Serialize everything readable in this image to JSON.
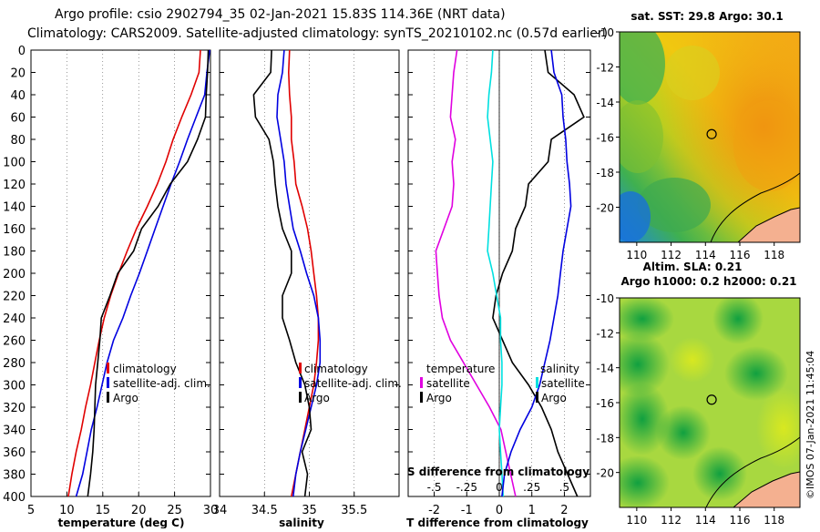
{
  "header": {
    "line1": "Argo profile: csio 2902794_35 02-Jan-2021 15.83S 114.36E (NRT data)",
    "line2": "Climatology: CARS2009. Satellite-adjusted climatology: synTS_20210102.nc (0.57d earlier)"
  },
  "credit": "©IMOS 07-Jan-2021 11:45:04",
  "colors": {
    "climatology": "#e00000",
    "satellite": "#0000e0",
    "argo": "#000000",
    "temperature_diff": "#e000e0",
    "salinity_diff": "#00e0e0"
  },
  "chart_data": [
    {
      "type": "line",
      "id": "temperature",
      "xlabel": "temperature (deg C)",
      "ylabel": "depth",
      "xlim": [
        5,
        30
      ],
      "ylim": [
        0,
        400
      ],
      "xticks": [
        5,
        10,
        15,
        20,
        25,
        30
      ],
      "yticks": [
        0,
        20,
        40,
        60,
        80,
        100,
        120,
        140,
        160,
        180,
        200,
        220,
        240,
        260,
        280,
        300,
        320,
        340,
        360,
        380,
        400
      ],
      "legend": [
        "climatology",
        "satellite-adj. clim.",
        "Argo"
      ],
      "series": [
        {
          "name": "climatology",
          "points": [
            [
              28.6,
              0
            ],
            [
              28.4,
              20
            ],
            [
              27.3,
              40
            ],
            [
              26.0,
              60
            ],
            [
              24.8,
              80
            ],
            [
              23.8,
              100
            ],
            [
              22.6,
              120
            ],
            [
              21.2,
              140
            ],
            [
              19.7,
              160
            ],
            [
              18.4,
              180
            ],
            [
              17.2,
              200
            ],
            [
              16.1,
              220
            ],
            [
              15.2,
              240
            ],
            [
              14.5,
              260
            ],
            [
              13.9,
              280
            ],
            [
              13.3,
              300
            ],
            [
              12.6,
              320
            ],
            [
              12.0,
              340
            ],
            [
              11.3,
              360
            ],
            [
              10.7,
              380
            ],
            [
              10.2,
              400
            ]
          ]
        },
        {
          "name": "satellite-adj. clim.",
          "points": [
            [
              29.9,
              0
            ],
            [
              29.5,
              20
            ],
            [
              29.2,
              40
            ],
            [
              28.0,
              60
            ],
            [
              26.8,
              80
            ],
            [
              25.7,
              100
            ],
            [
              24.5,
              120
            ],
            [
              23.4,
              140
            ],
            [
              22.3,
              160
            ],
            [
              21.2,
              180
            ],
            [
              20.1,
              200
            ],
            [
              18.9,
              220
            ],
            [
              17.8,
              240
            ],
            [
              16.5,
              260
            ],
            [
              15.6,
              280
            ],
            [
              14.9,
              300
            ],
            [
              14.2,
              320
            ],
            [
              13.4,
              340
            ],
            [
              12.8,
              360
            ],
            [
              12.2,
              380
            ],
            [
              11.3,
              400
            ]
          ]
        },
        {
          "name": "Argo",
          "points": [
            [
              29.7,
              0
            ],
            [
              29.6,
              20
            ],
            [
              29.4,
              40
            ],
            [
              29.3,
              60
            ],
            [
              28.2,
              80
            ],
            [
              26.8,
              100
            ],
            [
              24.4,
              120
            ],
            [
              22.7,
              140
            ],
            [
              20.4,
              160
            ],
            [
              19.3,
              180
            ],
            [
              17.1,
              200
            ],
            [
              16.0,
              220
            ],
            [
              14.8,
              240
            ],
            [
              14.6,
              260
            ],
            [
              14.3,
              280
            ],
            [
              14.0,
              300
            ],
            [
              13.9,
              320
            ],
            [
              13.8,
              340
            ],
            [
              13.6,
              360
            ],
            [
              13.3,
              380
            ],
            [
              12.9,
              400
            ]
          ]
        }
      ]
    },
    {
      "type": "line",
      "id": "salinity",
      "xlabel": "salinity",
      "xlim": [
        34,
        36
      ],
      "ylim": [
        0,
        400
      ],
      "xticks": [
        34,
        34.5,
        35,
        35.5
      ],
      "legend": [
        "climatology",
        "satellite-adj. clim.",
        "Argo"
      ],
      "series": [
        {
          "name": "climatology",
          "points": [
            [
              34.78,
              0
            ],
            [
              34.77,
              20
            ],
            [
              34.78,
              40
            ],
            [
              34.8,
              60
            ],
            [
              34.8,
              80
            ],
            [
              34.83,
              100
            ],
            [
              34.85,
              120
            ],
            [
              34.92,
              140
            ],
            [
              34.98,
              160
            ],
            [
              35.02,
              180
            ],
            [
              35.05,
              200
            ],
            [
              35.08,
              220
            ],
            [
              35.1,
              240
            ],
            [
              35.1,
              260
            ],
            [
              35.08,
              280
            ],
            [
              35.05,
              300
            ],
            [
              35.0,
              320
            ],
            [
              34.95,
              340
            ],
            [
              34.9,
              360
            ],
            [
              34.85,
              380
            ],
            [
              34.8,
              400
            ]
          ]
        },
        {
          "name": "satellite-adj. clim.",
          "points": [
            [
              34.72,
              0
            ],
            [
              34.7,
              20
            ],
            [
              34.65,
              40
            ],
            [
              34.64,
              60
            ],
            [
              34.68,
              80
            ],
            [
              34.72,
              100
            ],
            [
              34.74,
              120
            ],
            [
              34.78,
              140
            ],
            [
              34.82,
              160
            ],
            [
              34.9,
              180
            ],
            [
              34.97,
              200
            ],
            [
              35.05,
              220
            ],
            [
              35.1,
              240
            ],
            [
              35.12,
              260
            ],
            [
              35.12,
              280
            ],
            [
              35.08,
              300
            ],
            [
              35.02,
              320
            ],
            [
              34.96,
              340
            ],
            [
              34.9,
              360
            ],
            [
              34.85,
              380
            ],
            [
              34.82,
              400
            ]
          ]
        },
        {
          "name": "Argo",
          "points": [
            [
              34.58,
              0
            ],
            [
              34.57,
              20
            ],
            [
              34.38,
              40
            ],
            [
              34.4,
              60
            ],
            [
              34.55,
              80
            ],
            [
              34.6,
              100
            ],
            [
              34.62,
              120
            ],
            [
              34.65,
              140
            ],
            [
              34.7,
              160
            ],
            [
              34.8,
              180
            ],
            [
              34.8,
              200
            ],
            [
              34.7,
              220
            ],
            [
              34.7,
              240
            ],
            [
              34.78,
              260
            ],
            [
              34.85,
              280
            ],
            [
              34.95,
              300
            ],
            [
              35.0,
              320
            ],
            [
              35.02,
              340
            ],
            [
              34.92,
              360
            ],
            [
              34.98,
              380
            ],
            [
              34.95,
              400
            ]
          ]
        }
      ]
    },
    {
      "type": "line",
      "id": "difference",
      "xlabel": "T difference from climatology",
      "xlabel_top": "S difference from climatology",
      "xlim": [
        -2.8,
        2.8
      ],
      "xlim_s": [
        -0.7,
        0.7
      ],
      "ylim": [
        0,
        400
      ],
      "xticks": [
        -2,
        -1,
        0,
        1,
        2
      ],
      "xticks_s": [
        -0.5,
        -0.25,
        0,
        0.25,
        0.5
      ],
      "legend_left_title": "temperature",
      "legend_right_title": "salinity",
      "legend_entries": [
        "satellite",
        "Argo"
      ],
      "series": [
        {
          "name": "temperature satellite",
          "points": [
            [
              -1.3,
              0
            ],
            [
              -1.4,
              20
            ],
            [
              -1.45,
              40
            ],
            [
              -1.5,
              60
            ],
            [
              -1.35,
              80
            ],
            [
              -1.45,
              100
            ],
            [
              -1.4,
              120
            ],
            [
              -1.45,
              140
            ],
            [
              -1.7,
              160
            ],
            [
              -1.95,
              180
            ],
            [
              -1.9,
              200
            ],
            [
              -1.85,
              220
            ],
            [
              -1.75,
              240
            ],
            [
              -1.5,
              260
            ],
            [
              -1.1,
              280
            ],
            [
              -0.7,
              300
            ],
            [
              -0.3,
              320
            ],
            [
              0.05,
              340
            ],
            [
              0.2,
              360
            ],
            [
              0.35,
              380
            ],
            [
              0.5,
              400
            ]
          ]
        },
        {
          "name": "temperature Argo",
          "points": [
            [
              1.4,
              0
            ],
            [
              1.5,
              20
            ],
            [
              2.3,
              40
            ],
            [
              2.6,
              60
            ],
            [
              1.6,
              80
            ],
            [
              1.5,
              100
            ],
            [
              0.9,
              120
            ],
            [
              0.8,
              140
            ],
            [
              0.5,
              160
            ],
            [
              0.4,
              180
            ],
            [
              0.1,
              200
            ],
            [
              -0.1,
              220
            ],
            [
              -0.2,
              240
            ],
            [
              0.1,
              260
            ],
            [
              0.4,
              280
            ],
            [
              0.9,
              300
            ],
            [
              1.3,
              320
            ],
            [
              1.6,
              340
            ],
            [
              1.8,
              360
            ],
            [
              2.1,
              380
            ],
            [
              2.4,
              400
            ]
          ]
        },
        {
          "name": "salinity satellite",
          "points": [
            [
              -0.05,
              0
            ],
            [
              -0.06,
              20
            ],
            [
              -0.08,
              40
            ],
            [
              -0.09,
              60
            ],
            [
              -0.07,
              80
            ],
            [
              -0.05,
              100
            ],
            [
              -0.06,
              120
            ],
            [
              -0.07,
              140
            ],
            [
              -0.08,
              160
            ],
            [
              -0.09,
              180
            ],
            [
              -0.05,
              200
            ],
            [
              -0.02,
              220
            ],
            [
              0.01,
              240
            ],
            [
              0.01,
              260
            ],
            [
              0.02,
              280
            ],
            [
              0.02,
              300
            ],
            [
              0.01,
              320
            ],
            [
              0.0,
              340
            ],
            [
              0.01,
              360
            ],
            [
              0.02,
              380
            ],
            [
              0.03,
              400
            ]
          ]
        },
        {
          "name": "salinity Argo",
          "points": [
            [
              0.4,
              0
            ],
            [
              0.42,
              20
            ],
            [
              0.48,
              40
            ],
            [
              0.49,
              60
            ],
            [
              0.51,
              80
            ],
            [
              0.52,
              100
            ],
            [
              0.54,
              120
            ],
            [
              0.55,
              140
            ],
            [
              0.52,
              160
            ],
            [
              0.49,
              180
            ],
            [
              0.47,
              200
            ],
            [
              0.45,
              220
            ],
            [
              0.42,
              240
            ],
            [
              0.39,
              260
            ],
            [
              0.35,
              280
            ],
            [
              0.31,
              300
            ],
            [
              0.25,
              320
            ],
            [
              0.16,
              340
            ],
            [
              0.09,
              360
            ],
            [
              0.04,
              380
            ],
            [
              0.02,
              400
            ]
          ]
        }
      ]
    },
    {
      "type": "heatmap",
      "id": "sst_map",
      "title": "sat. SST: 29.8 Argo: 30.1",
      "xticks": [
        110,
        112,
        114,
        116,
        118
      ],
      "yticks": [
        -10,
        -12,
        -14,
        -16,
        -18,
        -20
      ],
      "xlim": [
        109,
        119.5
      ],
      "ylim": [
        -22,
        -10
      ],
      "marker": {
        "lon": 114.36,
        "lat": -15.83
      }
    },
    {
      "type": "heatmap",
      "id": "sla_map",
      "title": "Altim. SLA: 0.21",
      "subtitle": "Argo h1000: 0.2 h2000: 0.21",
      "xticks": [
        110,
        112,
        114,
        116,
        118
      ],
      "yticks": [
        -10,
        -12,
        -14,
        -16,
        -18,
        -20
      ],
      "xlim": [
        109,
        119.5
      ],
      "ylim": [
        -22,
        -10
      ],
      "marker": {
        "lon": 114.36,
        "lat": -15.83
      }
    }
  ]
}
